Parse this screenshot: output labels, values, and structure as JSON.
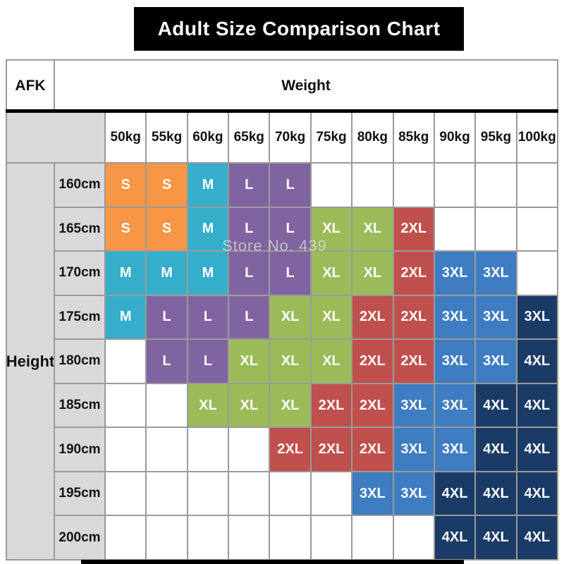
{
  "title": "Adult Size Comparison Chart",
  "corner_label": "AFK",
  "weight_label": "Weight",
  "height_label": "Height",
  "watermark": "Store No. 439",
  "colors": {
    "orange": "#F79646",
    "cyan": "#35AECB",
    "purple": "#8064A2",
    "green": "#9BBB59",
    "red": "#C0504D",
    "blue": "#3E7DC1",
    "navy": "#1A3B66"
  },
  "chart_data": {
    "type": "table",
    "title": "Adult Size Comparison Chart",
    "xlabel": "Weight",
    "ylabel": "Height",
    "columns": [
      "50kg",
      "55kg",
      "60kg",
      "65kg",
      "70kg",
      "75kg",
      "80kg",
      "85kg",
      "90kg",
      "95kg",
      "100kg"
    ],
    "rows": [
      {
        "label": "160cm",
        "cells": [
          [
            "S",
            "orange"
          ],
          [
            "S",
            "orange"
          ],
          [
            "M",
            "cyan"
          ],
          [
            "L",
            "purple"
          ],
          [
            "L",
            "purple"
          ],
          null,
          null,
          null,
          null,
          null,
          null
        ]
      },
      {
        "label": "165cm",
        "cells": [
          [
            "S",
            "orange"
          ],
          [
            "S",
            "orange"
          ],
          [
            "M",
            "cyan"
          ],
          [
            "L",
            "purple"
          ],
          [
            "L",
            "purple"
          ],
          [
            "XL",
            "green"
          ],
          [
            "XL",
            "green"
          ],
          [
            "2XL",
            "red"
          ],
          null,
          null,
          null
        ]
      },
      {
        "label": "170cm",
        "cells": [
          [
            "M",
            "cyan"
          ],
          [
            "M",
            "cyan"
          ],
          [
            "M",
            "cyan"
          ],
          [
            "L",
            "purple"
          ],
          [
            "L",
            "purple"
          ],
          [
            "XL",
            "green"
          ],
          [
            "XL",
            "green"
          ],
          [
            "2XL",
            "red"
          ],
          [
            "3XL",
            "blue"
          ],
          [
            "3XL",
            "blue"
          ],
          null
        ]
      },
      {
        "label": "175cm",
        "cells": [
          [
            "M",
            "cyan"
          ],
          [
            "L",
            "purple"
          ],
          [
            "L",
            "purple"
          ],
          [
            "L",
            "purple"
          ],
          [
            "XL",
            "green"
          ],
          [
            "XL",
            "green"
          ],
          [
            "2XL",
            "red"
          ],
          [
            "2XL",
            "red"
          ],
          [
            "3XL",
            "blue"
          ],
          [
            "3XL",
            "blue"
          ],
          [
            "3XL",
            "navy"
          ]
        ]
      },
      {
        "label": "180cm",
        "cells": [
          null,
          [
            "L",
            "purple"
          ],
          [
            "L",
            "purple"
          ],
          [
            "XL",
            "green"
          ],
          [
            "XL",
            "green"
          ],
          [
            "XL",
            "green"
          ],
          [
            "2XL",
            "red"
          ],
          [
            "2XL",
            "red"
          ],
          [
            "3XL",
            "blue"
          ],
          [
            "3XL",
            "blue"
          ],
          [
            "4XL",
            "navy"
          ]
        ]
      },
      {
        "label": "185cm",
        "cells": [
          null,
          null,
          [
            "XL",
            "green"
          ],
          [
            "XL",
            "green"
          ],
          [
            "XL",
            "green"
          ],
          [
            "2XL",
            "red"
          ],
          [
            "2XL",
            "red"
          ],
          [
            "3XL",
            "blue"
          ],
          [
            "3XL",
            "blue"
          ],
          [
            "4XL",
            "navy"
          ],
          [
            "4XL",
            "navy"
          ]
        ]
      },
      {
        "label": "190cm",
        "cells": [
          null,
          null,
          null,
          null,
          [
            "2XL",
            "red"
          ],
          [
            "2XL",
            "red"
          ],
          [
            "2XL",
            "red"
          ],
          [
            "3XL",
            "blue"
          ],
          [
            "3XL",
            "blue"
          ],
          [
            "4XL",
            "navy"
          ],
          [
            "4XL",
            "navy"
          ]
        ]
      },
      {
        "label": "195cm",
        "cells": [
          null,
          null,
          null,
          null,
          null,
          null,
          [
            "3XL",
            "blue"
          ],
          [
            "3XL",
            "blue"
          ],
          [
            "4XL",
            "navy"
          ],
          [
            "4XL",
            "navy"
          ],
          [
            "4XL",
            "navy"
          ]
        ]
      },
      {
        "label": "200cm",
        "cells": [
          null,
          null,
          null,
          null,
          null,
          null,
          null,
          null,
          [
            "4XL",
            "navy"
          ],
          [
            "4XL",
            "navy"
          ],
          [
            "4XL",
            "navy"
          ]
        ]
      }
    ]
  }
}
